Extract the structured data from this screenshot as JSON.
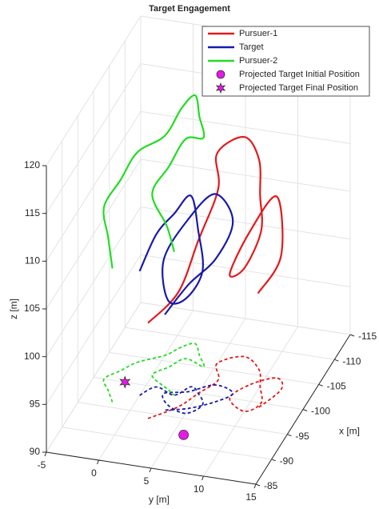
{
  "chart_data": {
    "type": "line3d",
    "title": "Target Engagement",
    "xlabel": "x [m]",
    "ylabel": "y [m]",
    "zlabel": "z [m]",
    "xlim": [
      -115,
      -85
    ],
    "ylim": [
      -5,
      15
    ],
    "zlim": [
      90,
      120
    ],
    "xticks": [
      -115,
      -110,
      -105,
      -100,
      -95,
      -90,
      -85
    ],
    "yticks": [
      -5,
      0,
      5,
      10,
      15
    ],
    "zticks": [
      90,
      95,
      100,
      105,
      110,
      115,
      120
    ],
    "grid": true,
    "legend": "upper right",
    "series": [
      {
        "name": "Pursuer-1",
        "color": "#e31a1c",
        "x": [
          -94,
          -97,
          -100,
          -103,
          -106,
          -108,
          -106,
          -103,
          -100,
          -98,
          -100,
          -103,
          -105,
          -103,
          -99
        ],
        "y": [
          2,
          4,
          5,
          6,
          5,
          7,
          9,
          10,
          11,
          10,
          8,
          9,
          11,
          12,
          11
        ],
        "z": [
          100,
          102,
          106,
          110,
          112,
          113,
          112,
          110,
          108,
          105,
          103,
          106,
          109,
          104,
          102
        ]
      },
      {
        "name": "Target",
        "color": "#1a1aa8",
        "x": [
          -98,
          -100,
          -99,
          -101,
          -100,
          -98,
          -96,
          -97,
          -99,
          -100,
          -102,
          -101,
          -99,
          -97,
          -96
        ],
        "y": [
          0,
          1,
          3,
          4,
          5,
          6,
          5,
          3,
          2,
          4,
          6,
          8,
          7,
          5,
          3
        ],
        "z": [
          103,
          106,
          109,
          110,
          107,
          104,
          102,
          101,
          104,
          108,
          110,
          108,
          105,
          103,
          100
        ]
      },
      {
        "name": "Pursuer-2",
        "color": "#22dd22",
        "x": [
          -96,
          -98,
          -100,
          -102,
          -104,
          -106,
          -108,
          -109,
          -107,
          -105,
          -106,
          -104,
          -102,
          -100,
          -99
        ],
        "y": [
          -2,
          -3,
          -4,
          -3,
          -2,
          0,
          1,
          2,
          3,
          4,
          2,
          1,
          0,
          2,
          3
        ],
        "z": [
          104,
          106,
          108,
          110,
          112,
          113,
          115,
          116,
          115,
          114,
          113,
          111,
          109,
          107,
          105
        ]
      },
      {
        "name": "Projected Target Initial Position",
        "color": "#e619e6",
        "marker": "circle",
        "x": [
          -92
        ],
        "y": [
          6
        ]
      },
      {
        "name": "Projected Target Final Position",
        "color": "#e619e6",
        "marker": "star",
        "x": [
          -100
        ],
        "y": [
          -2
        ]
      }
    ]
  }
}
